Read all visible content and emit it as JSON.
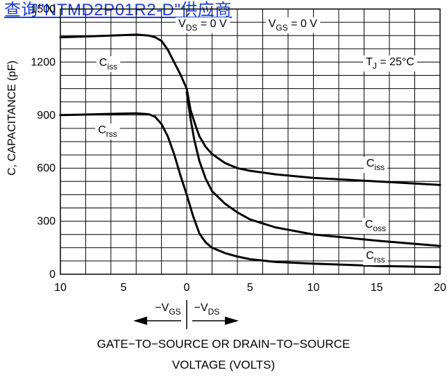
{
  "watermark": {
    "text": "查询\"NTMD2P01R2-D\"供应商"
  },
  "chart_data": {
    "type": "line",
    "ylabel": "C, CAPACITANCE (pF)",
    "xlabel_lines": [
      "GATE−TO−SOURCE OR DRAIN−TO−SOURCE",
      "VOLTAGE (VOLTS)"
    ],
    "ylim": [
      0,
      1500
    ],
    "y_ticks": [
      0,
      300,
      600,
      900,
      1200,
      1500
    ],
    "x_axis": {
      "left_part": {
        "variable": "V_GS",
        "range": [
          10,
          0
        ],
        "ticks": [
          10,
          5,
          0
        ]
      },
      "right_part": {
        "variable": "V_DS",
        "range": [
          0,
          20
        ],
        "ticks": [
          5,
          10,
          15,
          20
        ]
      }
    },
    "arrow_labels": {
      "left": "−V",
      "left_sub": "GS",
      "right": "−V",
      "right_sub": "DS"
    },
    "conditions": [
      {
        "text": "V",
        "sub": "DS",
        "rest": " = 0 V"
      },
      {
        "text": "V",
        "sub": "GS",
        "rest": " = 0 V"
      },
      {
        "text": "T",
        "sub": "J",
        "rest": " = 25°C"
      }
    ],
    "series": [
      {
        "name": "Ciss",
        "label": "C",
        "sub": "iss",
        "left_points": [
          [
            10,
            1340
          ],
          [
            8,
            1345
          ],
          [
            6,
            1350
          ],
          [
            4,
            1355
          ],
          [
            3,
            1350
          ],
          [
            2.5,
            1340
          ],
          [
            2,
            1320
          ],
          [
            1.5,
            1270
          ],
          [
            1,
            1200
          ],
          [
            0.5,
            1130
          ],
          [
            0,
            1050
          ]
        ],
        "right_points": [
          [
            0,
            1050
          ],
          [
            0.3,
            930
          ],
          [
            0.7,
            840
          ],
          [
            1,
            780
          ],
          [
            1.5,
            720
          ],
          [
            2,
            680
          ],
          [
            3,
            630
          ],
          [
            4,
            600
          ],
          [
            5,
            585
          ],
          [
            7,
            565
          ],
          [
            10,
            545
          ],
          [
            15,
            525
          ],
          [
            20,
            505
          ]
        ]
      },
      {
        "name": "Coss",
        "label": "C",
        "sub": "oss",
        "right_points": [
          [
            0,
            1030
          ],
          [
            0.3,
            880
          ],
          [
            0.6,
            760
          ],
          [
            1,
            640
          ],
          [
            1.5,
            540
          ],
          [
            2,
            470
          ],
          [
            3,
            400
          ],
          [
            4,
            350
          ],
          [
            5,
            310
          ],
          [
            7,
            265
          ],
          [
            10,
            225
          ],
          [
            15,
            190
          ],
          [
            20,
            160
          ]
        ]
      },
      {
        "name": "Crss",
        "label": "C",
        "sub": "rss",
        "left_points": [
          [
            10,
            900
          ],
          [
            8,
            903
          ],
          [
            6,
            907
          ],
          [
            4,
            910
          ],
          [
            3,
            905
          ],
          [
            2.5,
            890
          ],
          [
            2,
            850
          ],
          [
            1.5,
            780
          ],
          [
            1,
            680
          ],
          [
            0.5,
            560
          ],
          [
            0,
            450
          ]
        ],
        "right_points": [
          [
            0,
            450
          ],
          [
            0.5,
            330
          ],
          [
            1,
            230
          ],
          [
            1.5,
            180
          ],
          [
            2,
            150
          ],
          [
            3,
            120
          ],
          [
            4,
            100
          ],
          [
            5,
            85
          ],
          [
            7,
            70
          ],
          [
            10,
            60
          ],
          [
            15,
            47
          ],
          [
            20,
            40
          ]
        ]
      }
    ]
  }
}
